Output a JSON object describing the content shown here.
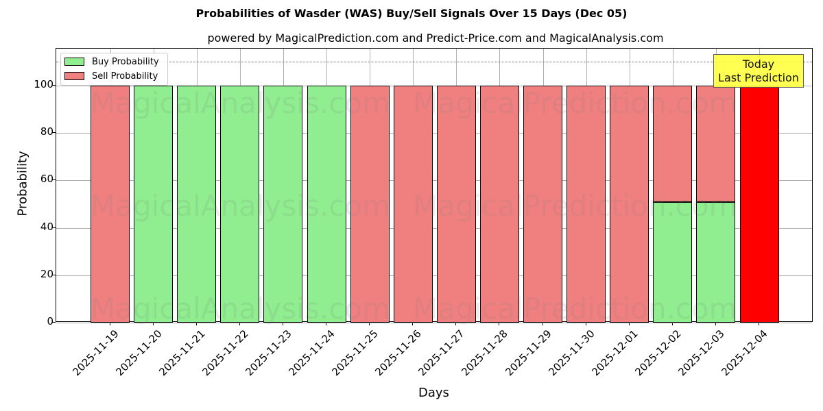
{
  "chart_data": {
    "type": "bar",
    "stacked": true,
    "title": "Probabilities of Wasder (WAS) Buy/Sell Signals Over 15 Days (Dec 05)",
    "subtitle": "powered by MagicalPrediction.com and Predict-Price.com and MagicalAnalysis.com",
    "xlabel": "Days",
    "ylabel": "Probability",
    "ylim": [
      0,
      115
    ],
    "yticks": [
      0,
      20,
      40,
      60,
      80,
      100
    ],
    "grid": true,
    "legend_position": "upper left",
    "categories": [
      "2025-11-19",
      "2025-11-20",
      "2025-11-21",
      "2025-11-22",
      "2025-11-23",
      "2025-11-24",
      "2025-11-25",
      "2025-11-26",
      "2025-11-27",
      "2025-11-28",
      "2025-11-29",
      "2025-11-30",
      "2025-12-01",
      "2025-12-02",
      "2025-12-03",
      "2025-12-04"
    ],
    "series": [
      {
        "name": "Buy Probability",
        "color": "#90ee90",
        "values": [
          0,
          100,
          100,
          100,
          100,
          100,
          0,
          0,
          0,
          0,
          0,
          0,
          0,
          51,
          51,
          0
        ]
      },
      {
        "name": "Sell Probability",
        "color": "#f08080",
        "values": [
          100,
          0,
          0,
          0,
          0,
          0,
          100,
          100,
          100,
          100,
          100,
          100,
          100,
          49,
          49,
          100
        ]
      }
    ],
    "highlight": {
      "category": "2025-12-04",
      "color": "#ff0000",
      "value": 100
    },
    "reference_line": {
      "y": 110,
      "style": "dashed"
    },
    "annotation": {
      "lines": [
        "Today",
        "Last Prediction"
      ],
      "background": "#ffff44"
    },
    "watermarks": [
      "MagicalAnalysis.com",
      "MagicalPrediction.com"
    ]
  },
  "title": "Probabilities of Wasder (WAS) Buy/Sell Signals Over 15 Days (Dec 05)",
  "subtitle": "powered by MagicalPrediction.com and Predict-Price.com and MagicalAnalysis.com",
  "axes": {
    "xlabel": "Days",
    "ylabel": "Probability"
  },
  "legend": {
    "buy": "Buy Probability",
    "sell": "Sell Probability"
  },
  "annotation": {
    "line1": "Today",
    "line2": "Last Prediction"
  },
  "watermark": {
    "a": "MagicalAnalysis.com",
    "b": "MagicalPrediction.com"
  }
}
